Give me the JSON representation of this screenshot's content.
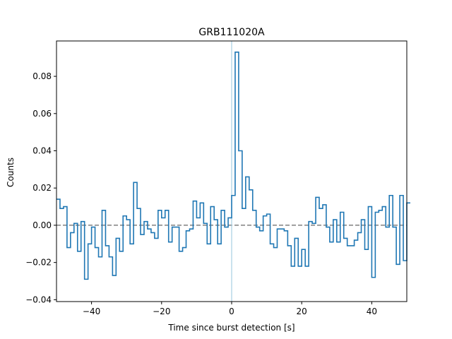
{
  "chart_data": {
    "type": "line",
    "style": "step-histogram",
    "title": "GRB111020A",
    "xlabel": "Time since burst detection [s]",
    "ylabel": "Counts",
    "xlim": [
      -50,
      50
    ],
    "ylim": [
      -0.041,
      0.099
    ],
    "x_ticks": [
      -40,
      -20,
      0,
      20,
      40
    ],
    "x_tick_labels": [
      "−40",
      "−20",
      "0",
      "20",
      "40"
    ],
    "y_ticks": [
      -0.04,
      -0.02,
      0.0,
      0.02,
      0.04,
      0.06,
      0.08
    ],
    "y_tick_labels": [
      "−0.04",
      "−0.02",
      "0.00",
      "0.02",
      "0.04",
      "0.06",
      "0.08"
    ],
    "grid": false,
    "bin_width": 1,
    "bin_start": -50,
    "series": [
      {
        "color": "#1f77b4",
        "values": [
          0.014,
          0.009,
          0.01,
          -0.012,
          -0.004,
          0.001,
          -0.014,
          0.002,
          -0.029,
          -0.01,
          -0.001,
          -0.012,
          -0.017,
          0.008,
          -0.011,
          -0.017,
          -0.027,
          -0.007,
          -0.014,
          0.005,
          0.003,
          -0.01,
          0.023,
          0.009,
          -0.005,
          0.002,
          -0.002,
          -0.004,
          -0.007,
          0.008,
          0.004,
          0.008,
          -0.009,
          -0.001,
          -0.001,
          -0.014,
          -0.012,
          -0.003,
          -0.002,
          0.013,
          0.004,
          0.012,
          0.001,
          -0.01,
          0.01,
          0.003,
          -0.01,
          0.008,
          -0.001,
          0.004,
          0.016,
          0.093,
          0.04,
          0.009,
          0.026,
          0.019,
          0.008,
          -0.001,
          -0.003,
          0.005,
          0.006,
          -0.01,
          -0.012,
          -0.002,
          -0.002,
          -0.003,
          -0.011,
          -0.022,
          -0.007,
          -0.022,
          -0.013,
          -0.022,
          0.002,
          0.001,
          0.015,
          0.009,
          0.011,
          -0.001,
          -0.009,
          0.003,
          -0.009,
          0.007,
          -0.007,
          -0.011,
          -0.011,
          -0.008,
          -0.004,
          0.003,
          -0.013,
          0.01,
          -0.028,
          0.007,
          0.008,
          0.01,
          -0.001,
          0.016,
          -0.001,
          -0.021,
          0.016,
          -0.019,
          0.012
        ]
      }
    ],
    "annotations": [
      {
        "kind": "horizontal-dashed-line",
        "y": 0,
        "color": "#808080"
      },
      {
        "kind": "vertical-line",
        "x": 0,
        "color": "#a6cee3"
      }
    ]
  }
}
